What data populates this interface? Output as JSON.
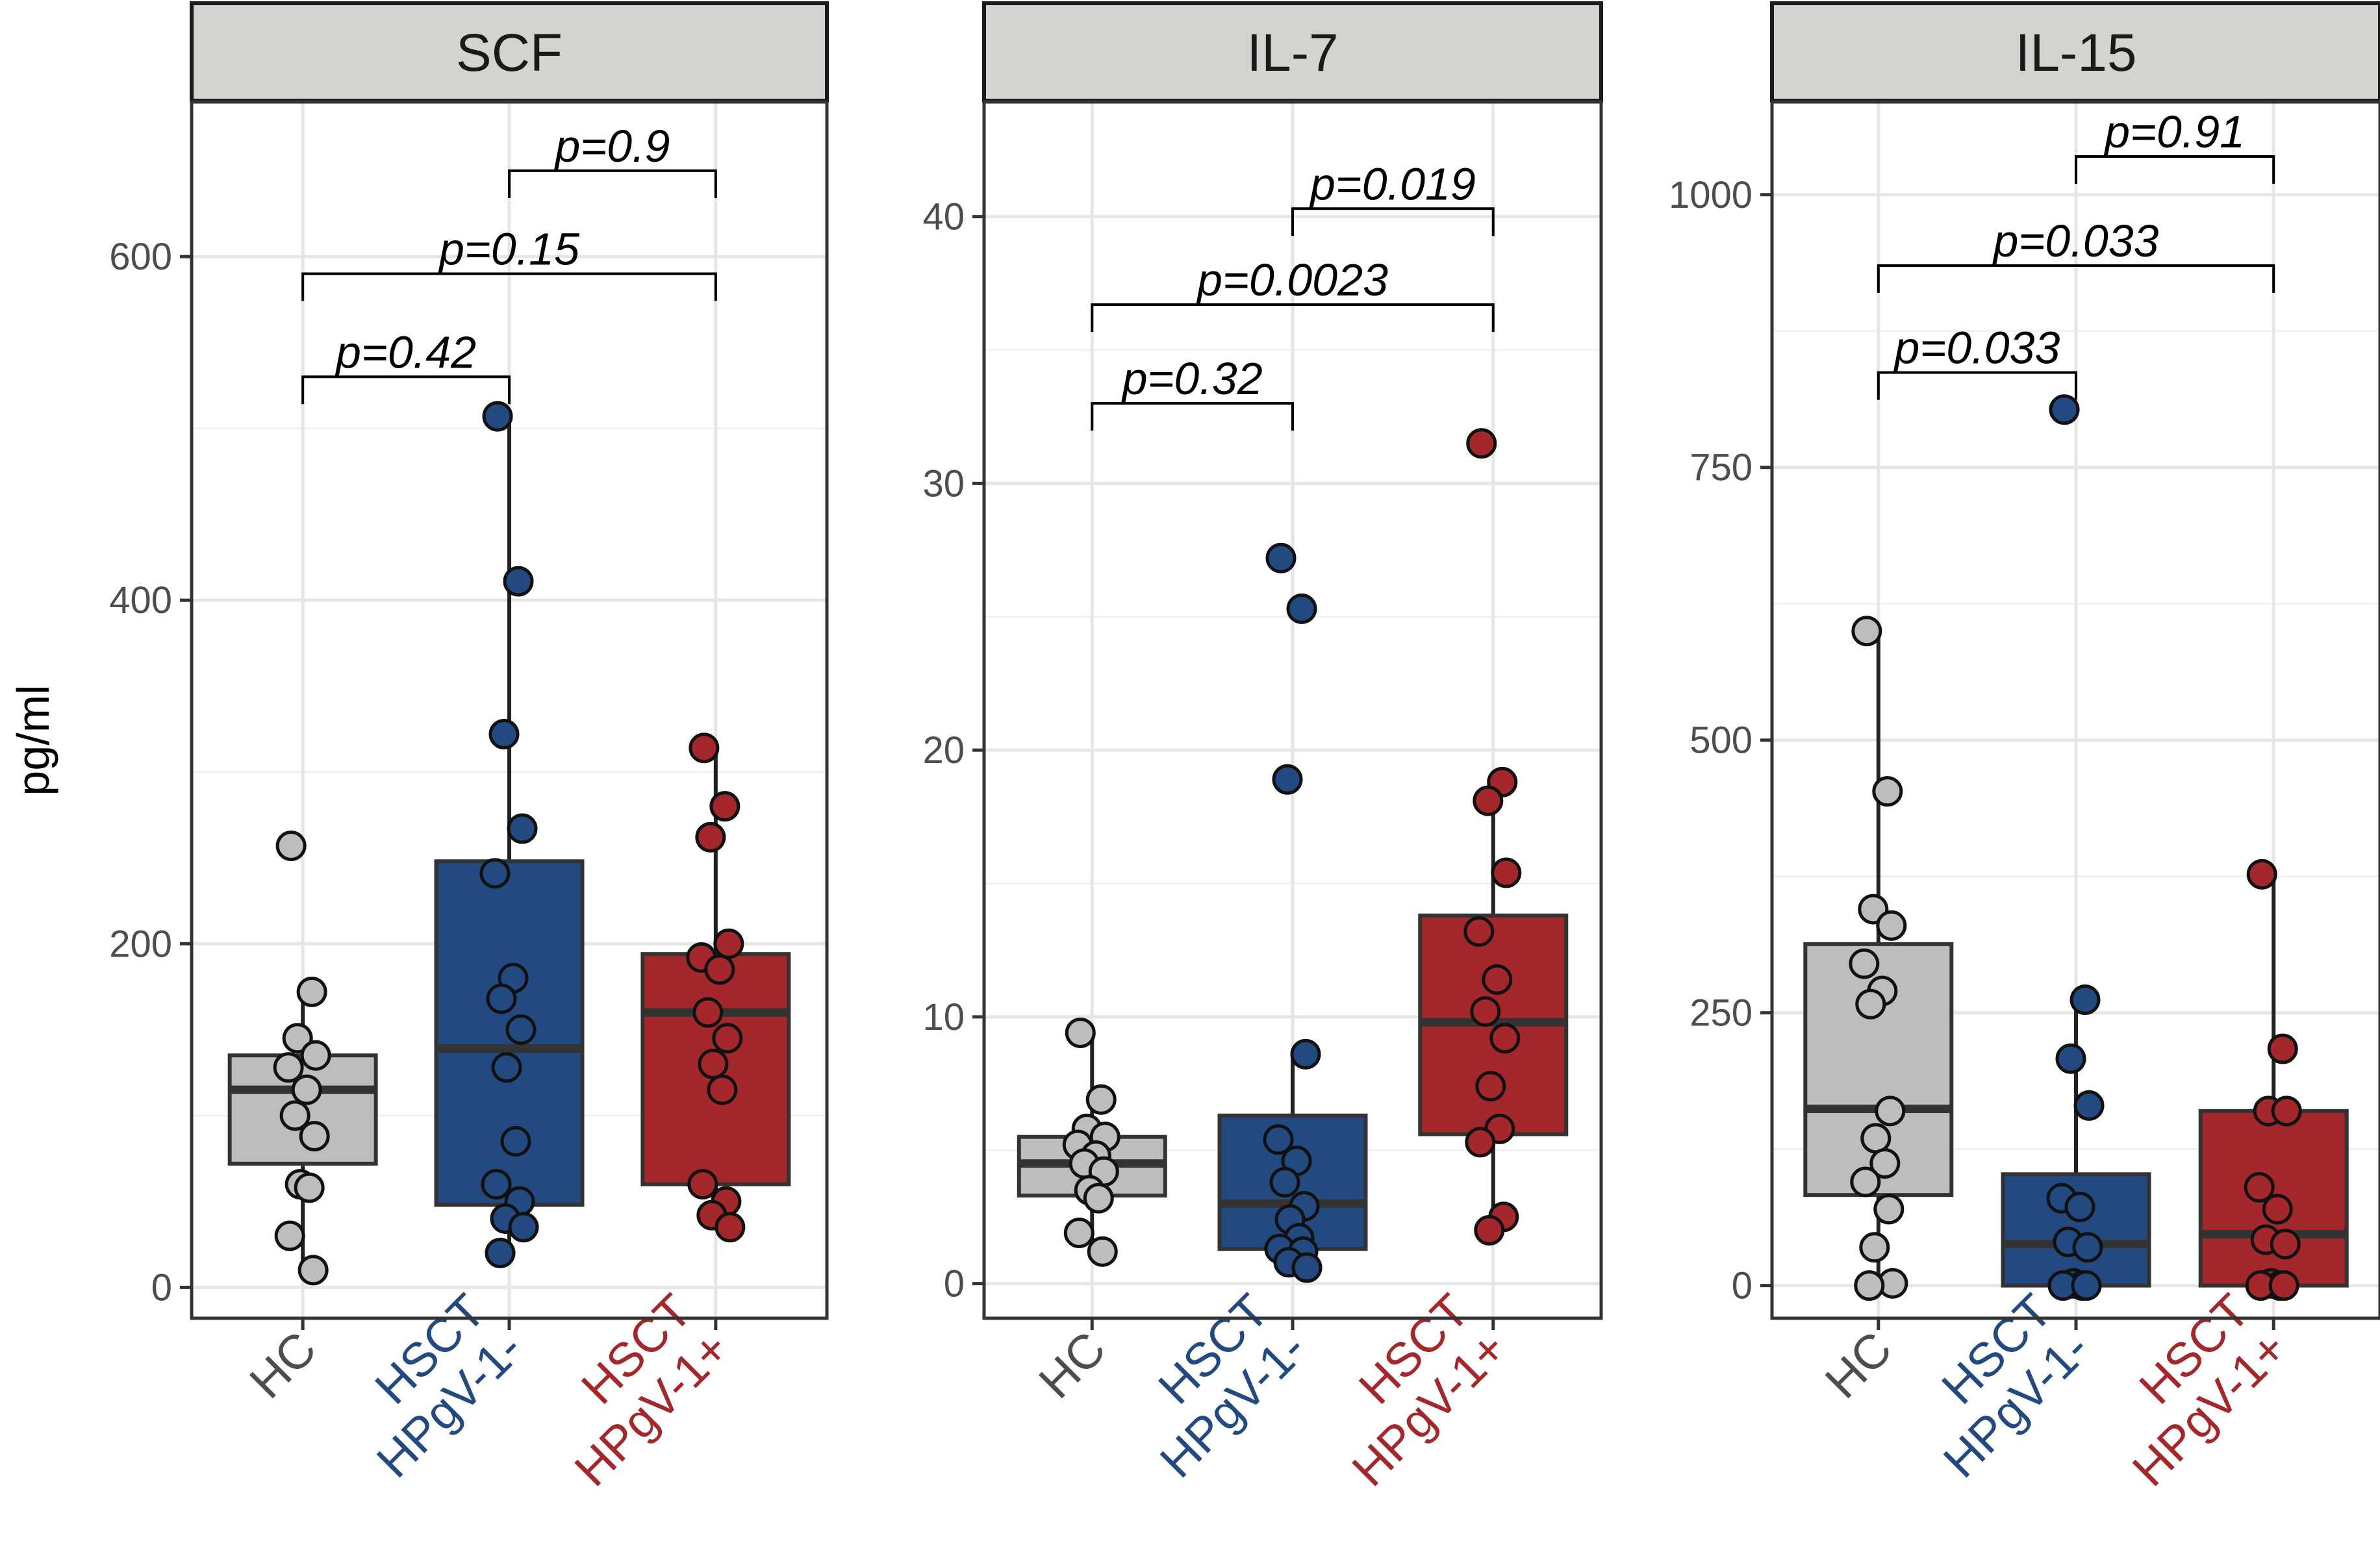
{
  "chart_data": {
    "type": "box",
    "y_label": "pg/ml",
    "group_colors": {
      "HC": "#bdbdbb",
      "HSCT HPgV-1-": "#234a80",
      "HSCT HPgV-1+": "#a3272b"
    },
    "label_colors": {
      "HC": "#4d4d4d",
      "HSCT HPgV-1-": "#234a80",
      "HSCT HPgV-1+": "#a3272b"
    },
    "categories": [
      "HC",
      "HSCT HPgV-1-",
      "HSCT HPgV-1+"
    ],
    "panels": [
      {
        "title": "SCF",
        "ylim": [
          -18,
          690
        ],
        "ticks": [
          0,
          200,
          400,
          600
        ],
        "tick_labels": [
          "0",
          "200",
          "400",
          "600"
        ],
        "groups": [
          {
            "name": "HC",
            "label_lines": [
              "HC"
            ],
            "box": {
              "q1": 72,
              "median": 115,
              "q3": 135,
              "whisker_low": 10,
              "whisker_high": 172
            },
            "points": [
              257,
              172,
              145,
              135,
              128,
              115,
              100,
              88,
              60,
              58,
              30,
              10
            ]
          },
          {
            "name": "HSCT HPgV-1-",
            "label_lines": [
              "HSCT",
              "HPgV-1-"
            ],
            "box": {
              "q1": 48,
              "median": 139,
              "q3": 248,
              "whisker_low": 20,
              "whisker_high": 507
            },
            "points": [
              507,
              411,
              322,
              267,
              241,
              180,
              168,
              150,
              128,
              85,
              60,
              50,
              40,
              35,
              20
            ]
          },
          {
            "name": "HSCT HPgV-1+",
            "label_lines": [
              "HSCT",
              "HPgV-1+"
            ],
            "box": {
              "q1": 60,
              "median": 160,
              "q3": 194,
              "whisker_low": 35,
              "whisker_high": 314
            },
            "points": [
              314,
              280,
              262,
              200,
              192,
              185,
              160,
              145,
              130,
              115,
              60,
              50,
              42,
              35
            ]
          }
        ],
        "comparisons": [
          {
            "from": 0,
            "to": 1,
            "y": 530,
            "label": "p=0.42"
          },
          {
            "from": 0,
            "to": 2,
            "y": 590,
            "label": "p=0.15"
          },
          {
            "from": 1,
            "to": 2,
            "y": 650,
            "label": "p=0.9"
          }
        ]
      },
      {
        "title": "IL-7",
        "ylim": [
          -1.3,
          44.3
        ],
        "ticks": [
          0,
          10,
          20,
          30,
          40
        ],
        "tick_labels": [
          "0",
          "10",
          "20",
          "30",
          "40"
        ],
        "groups": [
          {
            "name": "HC",
            "label_lines": [
              "HC"
            ],
            "box": {
              "q1": 3.3,
              "median": 4.5,
              "q3": 5.5,
              "whisker_low": 1.2,
              "whisker_high": 9.4
            },
            "points": [
              9.4,
              6.9,
              5.8,
              5.5,
              5.2,
              4.8,
              4.5,
              4.2,
              3.5,
              3.2,
              1.9,
              1.2
            ]
          },
          {
            "name": "HSCT HPgV-1-",
            "label_lines": [
              "HSCT",
              "HPgV-1-"
            ],
            "box": {
              "q1": 1.3,
              "median": 3.0,
              "q3": 6.3,
              "whisker_low": 0.6,
              "whisker_high": 8.6
            },
            "points": [
              27.2,
              25.3,
              18.9,
              8.6,
              5.4,
              4.6,
              3.8,
              2.9,
              2.4,
              1.7,
              1.3,
              1.2,
              0.8,
              0.6
            ]
          },
          {
            "name": "HSCT HPgV-1+",
            "label_lines": [
              "HSCT",
              "HPgV-1+"
            ],
            "box": {
              "q1": 5.6,
              "median": 9.8,
              "q3": 13.8,
              "whisker_low": 2.0,
              "whisker_high": 18.8
            },
            "points": [
              31.5,
              18.8,
              18.1,
              15.4,
              13.2,
              11.4,
              10.2,
              9.2,
              7.4,
              5.8,
              5.3,
              2.5,
              2.0
            ]
          }
        ],
        "comparisons": [
          {
            "from": 0,
            "to": 1,
            "y": 33,
            "label": "p=0.32"
          },
          {
            "from": 0,
            "to": 2,
            "y": 36.7,
            "label": "p=0.0023"
          },
          {
            "from": 1,
            "to": 2,
            "y": 40.3,
            "label": "p=0.019"
          }
        ]
      },
      {
        "title": "IL-15",
        "ylim": [
          -30,
          1085
        ],
        "ticks": [
          0,
          250,
          500,
          750,
          1000
        ],
        "tick_labels": [
          "0",
          "250",
          "500",
          "750",
          "1000"
        ],
        "groups": [
          {
            "name": "HC",
            "label_lines": [
              "HC"
            ],
            "box": {
              "q1": 83,
              "median": 162,
              "q3": 313,
              "whisker_low": 0,
              "whisker_high": 600
            },
            "points": [
              600,
              453,
              345,
              330,
              295,
              270,
              258,
              160,
              135,
              112,
              95,
              70,
              35,
              2,
              0
            ]
          },
          {
            "name": "HSCT HPgV-1-",
            "label_lines": [
              "HSCT",
              "HPgV-1-"
            ],
            "box": {
              "q1": 0,
              "median": 38,
              "q3": 102,
              "whisker_low": 0,
              "whisker_high": 262
            },
            "points": [
              803,
              262,
              208,
              165,
              80,
              72,
              40,
              35,
              2,
              0,
              0,
              0
            ]
          },
          {
            "name": "HSCT HPgV-1+",
            "label_lines": [
              "HSCT",
              "HPgV-1+"
            ],
            "box": {
              "q1": 0,
              "median": 47,
              "q3": 160,
              "whisker_low": 0,
              "whisker_high": 377
            },
            "points": [
              377,
              217,
              160,
              160,
              90,
              70,
              42,
              38,
              2,
              0,
              0,
              0
            ]
          }
        ],
        "comparisons": [
          {
            "from": 0,
            "to": 1,
            "y": 837,
            "label": "p=0.033"
          },
          {
            "from": 0,
            "to": 2,
            "y": 935,
            "label": "p=0.033"
          },
          {
            "from": 1,
            "to": 2,
            "y": 1035,
            "label": "p=0.91"
          }
        ]
      }
    ]
  }
}
